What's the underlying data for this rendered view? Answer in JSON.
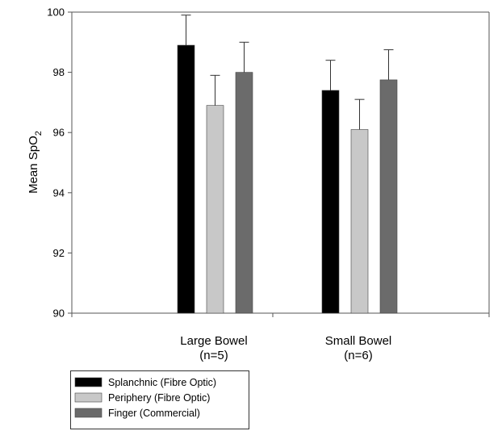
{
  "chart_data": {
    "type": "bar",
    "ylabel_main": "Mean SpO",
    "ylabel_sub": "2",
    "ylim": [
      90,
      100
    ],
    "yticks": [
      90,
      92,
      94,
      96,
      98,
      100
    ],
    "categories": [
      {
        "line1": "Large Bowel",
        "line2": "(n=5)"
      },
      {
        "line1": "Small Bowel",
        "line2": "(n=6)"
      }
    ],
    "series": [
      {
        "name": "Splanchnic (Fibre Optic)",
        "color": "#000000",
        "values": [
          98.9,
          97.4
        ],
        "errors": [
          1.0,
          1.0
        ]
      },
      {
        "name": "Periphery (Fibre Optic)",
        "color": "#c8c8c8",
        "values": [
          96.9,
          96.1
        ],
        "errors": [
          1.0,
          1.0
        ]
      },
      {
        "name": "Finger (Commercial)",
        "color": "#6b6b6b",
        "values": [
          98.0,
          97.75
        ],
        "errors": [
          1.0,
          1.0
        ]
      }
    ],
    "grid": false,
    "legend_position": "bottom-left"
  }
}
